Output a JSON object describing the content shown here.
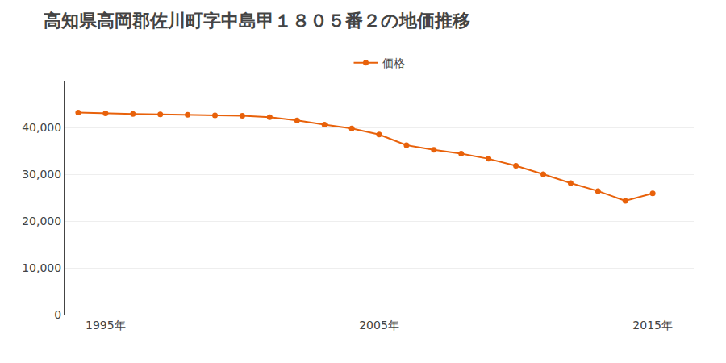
{
  "chart_data": {
    "type": "line",
    "title": "高知県高岡郡佐川町字中島甲１８０５番２の地価推移",
    "x": [
      1994,
      1995,
      1996,
      1997,
      1998,
      1999,
      2000,
      2001,
      2002,
      2003,
      2004,
      2005,
      2006,
      2007,
      2008,
      2009,
      2010,
      2011,
      2012,
      2013,
      2014,
      2015
    ],
    "series": [
      {
        "name": "価格",
        "color": "#e8610a",
        "marker": "circle",
        "line_style": "solid",
        "values": [
          43200,
          43000,
          42900,
          42800,
          42700,
          42600,
          42500,
          42200,
          41500,
          40600,
          39800,
          38500,
          36200,
          35200,
          34400,
          33300,
          31800,
          30000,
          28100,
          26400,
          24300,
          25900
        ]
      }
    ],
    "xlim": [
      1993.5,
      2016.5
    ],
    "xticks": [
      {
        "value": 1995,
        "label": "1995年"
      },
      {
        "value": 2005,
        "label": "2005年"
      },
      {
        "value": 2015,
        "label": "2015年"
      }
    ],
    "ylim": [
      0,
      50000
    ],
    "yticks": [
      0,
      {
        "value": 10000,
        "label": "10,000"
      },
      {
        "value": 20000,
        "label": "20,000"
      },
      {
        "value": 30000,
        "label": "30,000"
      },
      {
        "value": 40000,
        "label": "40,000"
      }
    ],
    "grid": "y",
    "legend": "top"
  }
}
